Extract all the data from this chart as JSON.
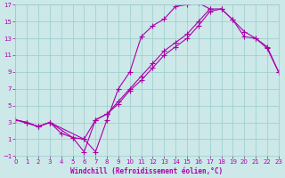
{
  "xlabel": "Windchill (Refroidissement éolien,°C)",
  "xlim": [
    0,
    23
  ],
  "ylim": [
    -1,
    17
  ],
  "xtick_step": 1,
  "ytick_step": 2,
  "background_color": "#cce8e8",
  "grid_color": "#99cccc",
  "line_color": "#aa00aa",
  "markersize": 2.5,
  "line_width": 0.8,
  "curve1_x": [
    0,
    1,
    2,
    3,
    4,
    5,
    6,
    7,
    8,
    9,
    10,
    11,
    12,
    13,
    14,
    15,
    16,
    17
  ],
  "curve1_y": [
    3.3,
    3.0,
    2.5,
    3.0,
    1.7,
    1.2,
    1.0,
    -0.5,
    3.3,
    7.0,
    9.0,
    13.2,
    14.5,
    15.3,
    16.8,
    17.0,
    17.2,
    16.5
  ],
  "curve2_x": [
    0,
    1,
    2,
    3,
    6,
    7,
    8,
    9,
    10,
    11,
    12,
    13,
    14,
    15,
    16,
    17,
    18,
    19,
    20,
    21,
    22,
    23
  ],
  "curve2_y": [
    3.3,
    3.0,
    2.5,
    3.0,
    1.0,
    3.3,
    4.0,
    5.5,
    7.0,
    8.5,
    10.0,
    11.5,
    12.5,
    13.5,
    15.0,
    16.5,
    16.5,
    15.2,
    13.2,
    13.0,
    12.0,
    9.0
  ],
  "curve3_x": [
    0,
    2,
    3,
    5,
    6,
    7,
    8,
    9,
    10,
    11,
    12,
    13,
    14,
    15,
    16,
    17,
    18,
    19,
    20,
    21,
    22,
    23
  ],
  "curve3_y": [
    3.3,
    2.5,
    3.0,
    1.2,
    -0.5,
    3.3,
    4.0,
    5.2,
    6.8,
    8.0,
    9.5,
    11.0,
    12.0,
    13.0,
    14.5,
    16.2,
    16.5,
    15.2,
    13.8,
    13.0,
    11.8,
    9.0
  ]
}
